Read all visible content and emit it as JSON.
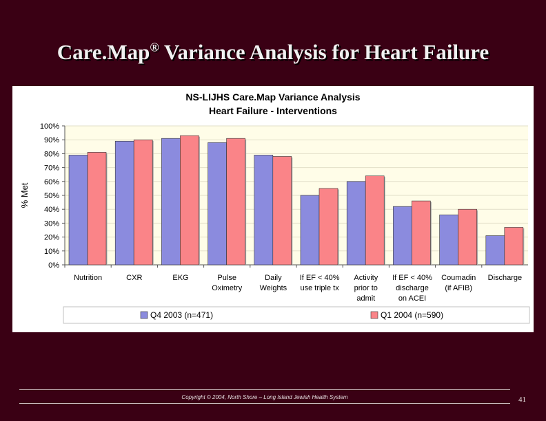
{
  "slide": {
    "title_main": "Care.Map",
    "title_mark": "®",
    "title_rest": " Variance Analysis  for Heart Failure",
    "footer": "Copyright © 2004, North Shore – Long Island Jewish Health System",
    "page_number": "41",
    "colors": {
      "background": "#3a0014",
      "title": "#f1f1f1"
    }
  },
  "chart_data": {
    "type": "bar",
    "title": "NS-LIJHS Care.Map Variance Analysis",
    "subtitle": "Heart Failure - Interventions",
    "ylabel": "% Met",
    "xlabel": "",
    "ylim": [
      0,
      100
    ],
    "yticks": [
      "0%",
      "10%",
      "20%",
      "30%",
      "40%",
      "50%",
      "60%",
      "70%",
      "80%",
      "90%",
      "100%"
    ],
    "grid": true,
    "legend_position": "bottom",
    "categories": [
      [
        "Nutrition"
      ],
      [
        "CXR"
      ],
      [
        "EKG"
      ],
      [
        "Pulse",
        "Oximetry"
      ],
      [
        "Daily",
        "Weights"
      ],
      [
        "If EF < 40%",
        "use triple tx"
      ],
      [
        "Activity",
        "prior to",
        "admit"
      ],
      [
        "If EF < 40%",
        "discharge",
        "on ACEI"
      ],
      [
        "Coumadin",
        "(if AFIB)"
      ],
      [
        "Discharge"
      ]
    ],
    "series": [
      {
        "name": "Q4 2003 (n=471)",
        "color": "#8b8bde",
        "values": [
          79,
          89,
          91,
          88,
          79,
          50,
          60,
          42,
          36,
          21
        ]
      },
      {
        "name": "Q1 2004 (n=590)",
        "color": "#fa8488",
        "values": [
          81,
          90,
          93,
          91,
          78,
          55,
          64,
          46,
          40,
          27
        ]
      }
    ]
  }
}
